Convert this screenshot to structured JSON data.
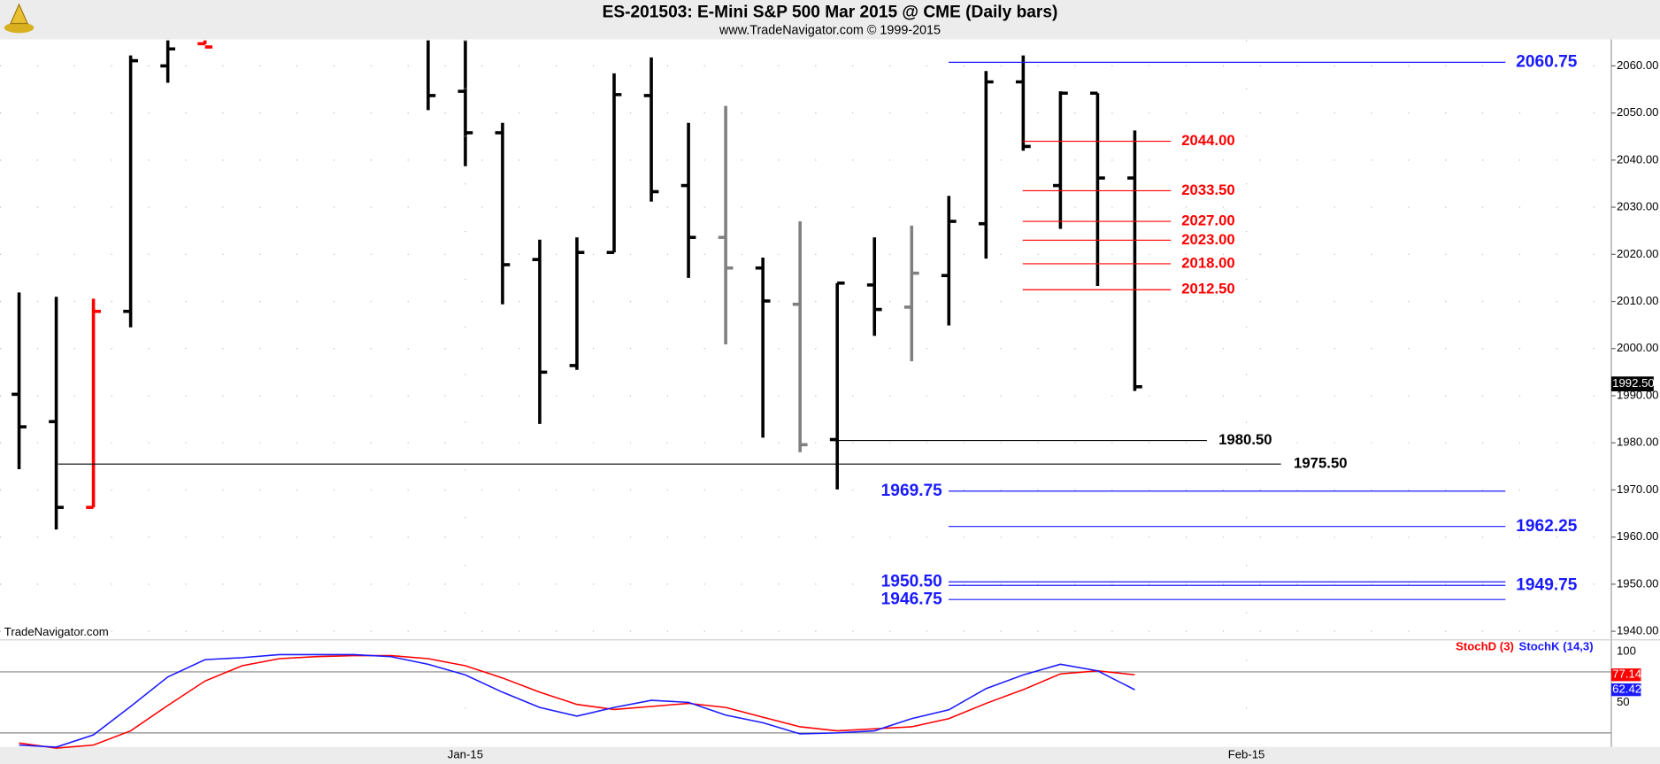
{
  "chart_data": [
    {
      "type": "ohlc",
      "title": "ES-201503:  E-Mini S&P 500 Mar 2015 @ CME  (Daily bars)",
      "subtitle": "www.TradeNavigator.com © 1999-2015",
      "watermark": "TradeNavigator.com",
      "categories": [
        null,
        null,
        null,
        null,
        null,
        null,
        null,
        null,
        null,
        null,
        null,
        null,
        null,
        null,
        null,
        null,
        null,
        null,
        null,
        null,
        null,
        null,
        null,
        null,
        null,
        null,
        null,
        null,
        null,
        null,
        null
      ],
      "open": [
        1990.3,
        1984.5,
        1966.3,
        2007.9,
        2060,
        2064.7,
        null,
        null,
        null,
        null,
        null,
        2066,
        2054.6,
        2045.8,
        2018.9,
        1996.4,
        2020.4,
        2053.7,
        2034.6,
        2023.6,
        2017.1,
        2009.4,
        1980.7,
        2013.5,
        2008.8,
        2015.5,
        2026.5,
        2056.6,
        2034.6,
        2054.2,
        2036.2
      ],
      "high": [
        2011.9,
        2011,
        2010.6,
        2062.2,
        2066,
        2066,
        null,
        null,
        null,
        null,
        null,
        2066,
        2066,
        2047.9,
        2023.1,
        2023.6,
        2058.4,
        2061.8,
        2047.9,
        2051.5,
        2019.3,
        2027,
        2013.9,
        2023.6,
        2026.1,
        2032.4,
        2058.9,
        2062.2,
        2054.6,
        2054.2,
        2046.3
      ],
      "low": [
        1974.4,
        1961.6,
        1966.3,
        2004.5,
        2056.4,
        2064.6,
        null,
        null,
        null,
        null,
        null,
        2050.6,
        2038.7,
        2009.4,
        1984,
        1995.5,
        2020.4,
        2031.2,
        2015,
        2000.9,
        1981.1,
        1978,
        1970.1,
        2002.7,
        1997.3,
        2004.9,
        2019.1,
        2042,
        2025.4,
        2013.3,
        1991
      ],
      "close": [
        1983.4,
        1966.3,
        2007.9,
        2061.1,
        2063.6,
        2064,
        null,
        null,
        null,
        null,
        null,
        2053.7,
        2045.8,
        2017.8,
        1995,
        2020.4,
        2053.9,
        2033.3,
        2023.6,
        2017.1,
        2010.1,
        1979.6,
        2013.9,
        2008.3,
        2016,
        2027,
        2056.6,
        2042.9,
        2054.2,
        2036.2,
        1991.9
      ],
      "colors": [
        "#000000",
        "#000000",
        "#ff0000",
        "#000000",
        "#000000",
        "#ff0000",
        "#000000",
        "#000000",
        "#000000",
        "#000000",
        "#000000",
        "#000000",
        "#000000",
        "#000000",
        "#000000",
        "#000000",
        "#000000",
        "#000000",
        "#000000",
        "#808080",
        "#000000",
        "#808080",
        "#000000",
        "#000000",
        "#808080",
        "#000000",
        "#000000",
        "#000000",
        "#000000",
        "#000000",
        "#000000"
      ],
      "ylim": [
        1938.4,
        2065.4
      ],
      "yticks": [
        {
          "value": 1940,
          "label": "1940.00"
        },
        {
          "value": 1950,
          "label": "1950.00"
        },
        {
          "value": 1960,
          "label": "1960.00"
        },
        {
          "value": 1970,
          "label": "1970.00"
        },
        {
          "value": 1980,
          "label": "1980.00"
        },
        {
          "value": 1990,
          "label": "1990.00"
        },
        {
          "value": 2000,
          "label": "2000.00"
        },
        {
          "value": 2010,
          "label": "2010.00"
        },
        {
          "value": 2020,
          "label": "2020.00"
        },
        {
          "value": 2030,
          "label": "2030.00"
        },
        {
          "value": 2040,
          "label": "2040.00"
        },
        {
          "value": 2050,
          "label": "2050.00"
        },
        {
          "value": 2060,
          "label": "2060.00"
        }
      ],
      "last_price": {
        "value": 1992.5,
        "label": "1992.50"
      },
      "xlabels": [
        "Jan-15",
        "Feb-15"
      ],
      "annotations": [
        {
          "value": 2060.75,
          "label": "2060.75",
          "color": "#1a1aff"
        },
        {
          "value": 2044,
          "label": "2044.00",
          "color": "#ff0000"
        },
        {
          "value": 2033.5,
          "label": "2033.50",
          "color": "#ff0000"
        },
        {
          "value": 2027,
          "label": "2027.00",
          "color": "#ff0000"
        },
        {
          "value": 2023,
          "label": "2023.00",
          "color": "#ff0000"
        },
        {
          "value": 2018,
          "label": "2018.00",
          "color": "#ff0000"
        },
        {
          "value": 2012.5,
          "label": "2012.50",
          "color": "#ff0000"
        },
        {
          "value": 1980.5,
          "label": "1980.50",
          "color": "#000000"
        },
        {
          "value": 1975.5,
          "label": "1975.50",
          "color": "#000000"
        },
        {
          "value": 1969.75,
          "label": "1969.75",
          "color": "#1a1aff"
        },
        {
          "value": 1962.25,
          "label": "1962.25",
          "color": "#1a1aff"
        },
        {
          "value": 1950.5,
          "label": "1950.50",
          "color": "#1a1aff"
        },
        {
          "value": 1949.75,
          "label": "1949.75",
          "color": "#1a1aff"
        },
        {
          "value": 1946.75,
          "label": "1946.75",
          "color": "#1a1aff"
        }
      ]
    },
    {
      "type": "line",
      "ylim": [
        8.3,
        110.4
      ],
      "yticks": [
        50,
        100
      ],
      "levels": [
        80,
        20
      ],
      "series": [
        {
          "name": "StochD (3)",
          "color": "#ff0000",
          "values": [
            10,
            5,
            8,
            22,
            47,
            71,
            86,
            93,
            95,
            96,
            96,
            93,
            86,
            74,
            60,
            48,
            43,
            46,
            49,
            45,
            35.4,
            26,
            22,
            24,
            26,
            34,
            49,
            62.5,
            78,
            81,
            77.14
          ],
          "last_value": 77.14
        },
        {
          "name": "StochK (14,3)",
          "color": "#1a1aff",
          "values": [
            8,
            6,
            18,
            46,
            75,
            92,
            94,
            97,
            97,
            97,
            95,
            87.5,
            77,
            60,
            45,
            36.5,
            45,
            52,
            50,
            37.5,
            30,
            19,
            20,
            22,
            34,
            42.7,
            63.5,
            77,
            87.5,
            81,
            62.42
          ],
          "last_value": 62.42
        }
      ]
    }
  ]
}
